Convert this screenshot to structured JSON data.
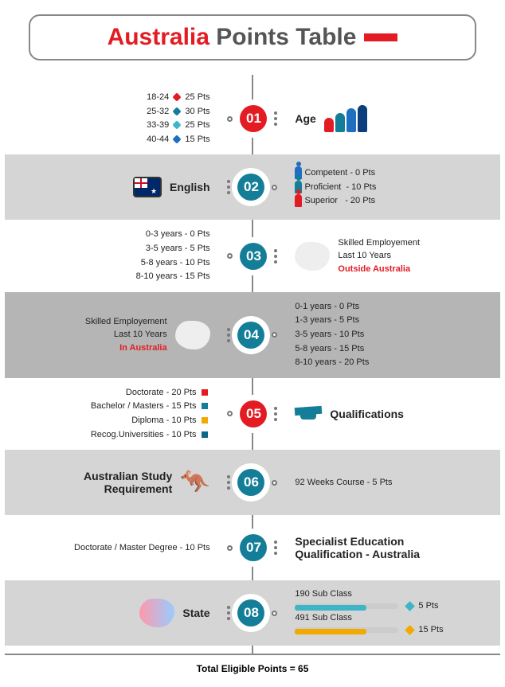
{
  "title": {
    "red": "Australia",
    "rest": "Points Table"
  },
  "rows": [
    {
      "num": "01",
      "color": "red",
      "right_heading": "Age",
      "left_list": [
        {
          "label": "18-24",
          "pts": "25 Pts",
          "marker": "#e31b23"
        },
        {
          "label": "25-32",
          "pts": "30 Pts",
          "marker": "#147e99"
        },
        {
          "label": "33-39",
          "pts": "25 Pts",
          "marker": "#3db5c7"
        },
        {
          "label": "40-44",
          "pts": "15 Pts",
          "marker": "#1e6fc0"
        }
      ]
    },
    {
      "num": "02",
      "color": "teal",
      "left_heading": "English",
      "right_list": [
        {
          "label": "Competent",
          "pts": "- 0 Pts",
          "icon": "ps-blue"
        },
        {
          "label": "Proficient",
          "pts": "- 10 Pts",
          "icon": "ps-teal"
        },
        {
          "label": "Superior",
          "pts": "- 20 Pts",
          "icon": "ps-red"
        }
      ]
    },
    {
      "num": "03",
      "color": "teal",
      "left_list_plain": [
        "0-3 years  -  0 Pts",
        "3-5 years  -  5 Pts",
        "5-8 years  - 10 Pts",
        "8-10 years - 15 Pts"
      ],
      "right_heading_lines": [
        "Skilled Employement",
        "Last 10 Years"
      ],
      "right_heading_red": "Outside Australia"
    },
    {
      "num": "04",
      "color": "teal",
      "left_heading_lines": [
        "Skilled Employement",
        "Last 10 Years"
      ],
      "left_heading_red": "In Australia",
      "right_list_plain": [
        "0-1 years  -  0  Pts",
        "1-3 years  -  5  Pts",
        "3-5 years  - 10 Pts",
        "5-8 years  - 15 Pts",
        "8-10 years - 20 Pts"
      ]
    },
    {
      "num": "05",
      "color": "red",
      "right_heading": "Qualifications",
      "left_list_sq": [
        {
          "label": "Doctorate - 20 Pts",
          "c": "#e31b23"
        },
        {
          "label": "Bachelor / Masters - 15 Pts",
          "c": "#147e99"
        },
        {
          "label": "Diploma - 10 Pts",
          "c": "#f2a900"
        },
        {
          "label": "Recog.Universities - 10 Pts",
          "c": "#0d6986"
        }
      ]
    },
    {
      "num": "06",
      "color": "teal",
      "left_heading_bold": "Australian Study\nRequirement",
      "right_text": "92 Weeks Course - 5 Pts"
    },
    {
      "num": "07",
      "color": "teal",
      "left_text": "Doctorate / Master Degree - 10 Pts",
      "right_heading_bold": "Specialist Education\nQualification - Australia"
    },
    {
      "num": "08",
      "color": "teal",
      "left_heading": "State",
      "sub190": {
        "label": "190 Sub Class",
        "pts": "5 Pts",
        "cap": "#3db5c7"
      },
      "sub491": {
        "label": "491 Sub Class",
        "pts": "15 Pts",
        "cap": "#f2a900"
      }
    }
  ],
  "footer": "Total Eligible Points = 65"
}
